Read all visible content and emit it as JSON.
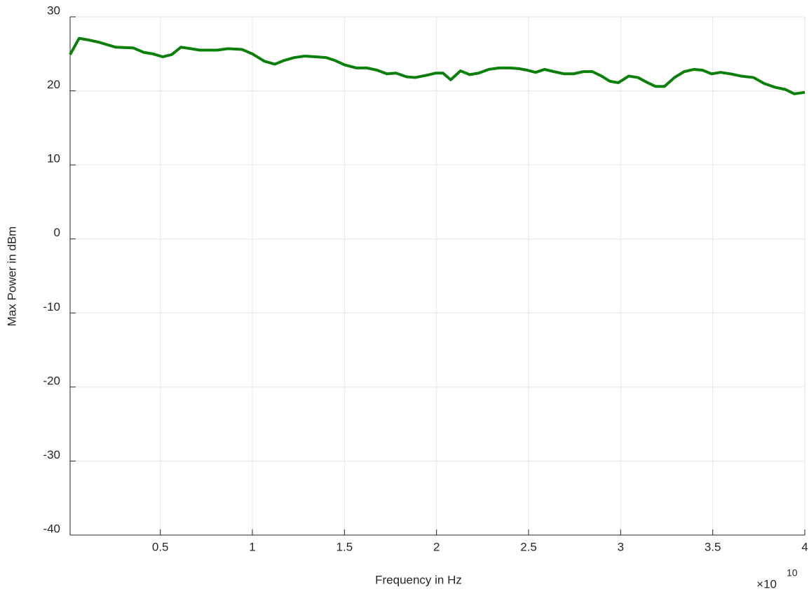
{
  "chart_data": {
    "type": "line",
    "xlabel": "Frequency in Hz",
    "ylabel": "Max Power in dBm",
    "x_exponent_base": "×10",
    "x_exponent": "10",
    "xlim": [
      100000000.0,
      40000000000.0
    ],
    "ylim": [
      -40,
      30
    ],
    "xticks": [
      {
        "value": 5000000000.0,
        "label": "0.5"
      },
      {
        "value": 10000000000.0,
        "label": "1"
      },
      {
        "value": 15000000000.0,
        "label": "1.5"
      },
      {
        "value": 20000000000.0,
        "label": "2"
      },
      {
        "value": 25000000000.0,
        "label": "2.5"
      },
      {
        "value": 30000000000.0,
        "label": "3"
      },
      {
        "value": 35000000000.0,
        "label": "3.5"
      },
      {
        "value": 40000000000.0,
        "label": "4"
      }
    ],
    "yticks": [
      -40,
      -30,
      -20,
      -10,
      0,
      10,
      20,
      30
    ],
    "grid": true,
    "x": [
      100000000.0,
      590000000.0,
      1050000000.0,
      1620000000.0,
      2570000000.0,
      3530000000.0,
      4100000000.0,
      4590000000.0,
      5130000000.0,
      5620000000.0,
      6120000000.0,
      6650000000.0,
      7140000000.0,
      7640000000.0,
      8090000000.0,
      8670000000.0,
      9430000000.0,
      10000000000.0,
      10650000000.0,
      11220000000.0,
      11710000000.0,
      12280000000.0,
      12850000000.0,
      13430000000.0,
      14000000000.0,
      14490000000.0,
      15020000000.0,
      15630000000.0,
      16200000000.0,
      16770000000.0,
      17300000000.0,
      17800000000.0,
      18370000000.0,
      18830000000.0,
      19440000000.0,
      19970000000.0,
      20350000000.0,
      20770000000.0,
      21300000000.0,
      21800000000.0,
      22290000000.0,
      22830000000.0,
      23400000000.0,
      23970000000.0,
      24470000000.0,
      24920000000.0,
      25380000000.0,
      25870000000.0,
      26370000000.0,
      26940000000.0,
      27430000000.0,
      27970000000.0,
      28460000000.0,
      28960000000.0,
      29410000000.0,
      29870000000.0,
      30440000000.0,
      30940000000.0,
      31390000000.0,
      31890000000.0,
      32380000000.0,
      32920000000.0,
      33450000000.0,
      33980000000.0,
      34440000000.0,
      34930000000.0,
      35430000000.0,
      35960000000.0,
      36530000000.0,
      37220000000.0,
      37790000000.0,
      38360000000.0,
      38930000000.0,
      39430000000.0,
      40000000000.0
    ],
    "series": [
      {
        "color": "#0a800a",
        "values": [
          24.9,
          27.1,
          26.9,
          26.6,
          25.9,
          25.8,
          25.2,
          25.0,
          24.6,
          24.9,
          25.9,
          25.7,
          25.5,
          25.5,
          25.5,
          25.7,
          25.6,
          25.0,
          24.0,
          23.6,
          24.1,
          24.5,
          24.7,
          24.6,
          24.5,
          24.1,
          23.5,
          23.1,
          23.1,
          22.8,
          22.3,
          22.4,
          21.9,
          21.8,
          22.1,
          22.4,
          22.4,
          21.5,
          22.7,
          22.2,
          22.4,
          22.9,
          23.1,
          23.1,
          23.0,
          22.8,
          22.5,
          22.9,
          22.6,
          22.3,
          22.3,
          22.6,
          22.6,
          22.0,
          21.3,
          21.1,
          22.0,
          21.8,
          21.2,
          20.6,
          20.6,
          21.8,
          22.6,
          22.9,
          22.8,
          22.3,
          22.5,
          22.3,
          22.0,
          21.8,
          21.0,
          20.5,
          20.2,
          19.6,
          19.8
        ]
      }
    ]
  }
}
